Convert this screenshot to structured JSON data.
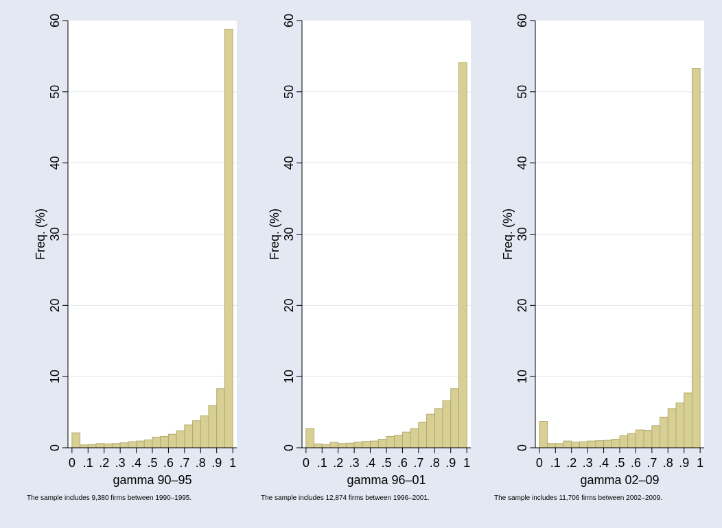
{
  "colors": {
    "background": "#e3e8f2",
    "plot_background": "#ffffff",
    "bar_fill": "#d7cf94",
    "bar_stroke": "#b2aa6c",
    "gridline": "#e1e6ee"
  },
  "chart_data": [
    {
      "type": "bar",
      "xlabel": "gamma 90–95",
      "ylabel": "Freq. (%)",
      "note": "The sample includes 9,380 firms between 1990–1995.",
      "xlim": [
        -0.025,
        1.025
      ],
      "ylim": [
        0,
        60
      ],
      "xticks": [
        "0",
        ".1",
        ".2",
        ".3",
        ".4",
        ".5",
        ".6",
        ".7",
        ".8",
        ".9",
        "1"
      ],
      "yticks": [
        "0",
        "10",
        "20",
        "30",
        "40",
        "50",
        "60"
      ],
      "grid": true,
      "bin_width": 0.05,
      "bin_starts": [
        0,
        0.05,
        0.1,
        0.15,
        0.2,
        0.25,
        0.3,
        0.35,
        0.4,
        0.45,
        0.5,
        0.55,
        0.6,
        0.65,
        0.7,
        0.75,
        0.8,
        0.85,
        0.9,
        0.95
      ],
      "values": [
        2.1,
        0.4,
        0.45,
        0.6,
        0.55,
        0.6,
        0.7,
        0.85,
        0.95,
        1.1,
        1.5,
        1.6,
        1.9,
        2.4,
        3.2,
        3.8,
        4.5,
        5.9,
        8.3,
        58.8
      ]
    },
    {
      "type": "bar",
      "xlabel": "gamma 96–01",
      "ylabel": "Freq. (%)",
      "note": "The sample includes 12,874 firms between 1996–2001.",
      "xlim": [
        -0.025,
        1.025
      ],
      "ylim": [
        0,
        60
      ],
      "xticks": [
        "0",
        ".1",
        ".2",
        ".3",
        ".4",
        ".5",
        ".6",
        ".7",
        ".8",
        ".9",
        "1"
      ],
      "yticks": [
        "0",
        "10",
        "20",
        "30",
        "40",
        "50",
        "60"
      ],
      "grid": true,
      "bin_width": 0.05,
      "bin_starts": [
        0,
        0.05,
        0.1,
        0.15,
        0.2,
        0.25,
        0.3,
        0.35,
        0.4,
        0.45,
        0.5,
        0.55,
        0.6,
        0.65,
        0.7,
        0.75,
        0.8,
        0.85,
        0.9,
        0.95
      ],
      "values": [
        2.7,
        0.55,
        0.45,
        0.75,
        0.6,
        0.65,
        0.8,
        0.9,
        0.95,
        1.2,
        1.6,
        1.75,
        2.2,
        2.7,
        3.6,
        4.7,
        5.5,
        6.6,
        8.3,
        54.1
      ]
    },
    {
      "type": "bar",
      "xlabel": "gamma 02–09",
      "ylabel": "Freq. (%)",
      "note": "The sample includes 11,706 firms between 2002–2009.",
      "xlim": [
        -0.025,
        1.025
      ],
      "ylim": [
        0,
        60
      ],
      "xticks": [
        "0",
        ".1",
        ".2",
        ".3",
        ".4",
        ".5",
        ".6",
        ".7",
        ".8",
        ".9",
        "1"
      ],
      "yticks": [
        "0",
        "10",
        "20",
        "30",
        "40",
        "50",
        "60"
      ],
      "grid": true,
      "bin_width": 0.05,
      "bin_starts": [
        0,
        0.05,
        0.1,
        0.15,
        0.2,
        0.25,
        0.3,
        0.35,
        0.4,
        0.45,
        0.5,
        0.55,
        0.6,
        0.65,
        0.7,
        0.75,
        0.8,
        0.85,
        0.9,
        0.95
      ],
      "values": [
        3.7,
        0.6,
        0.6,
        0.95,
        0.8,
        0.85,
        0.95,
        1.0,
        1.05,
        1.2,
        1.7,
        2.0,
        2.5,
        2.45,
        3.1,
        4.3,
        5.5,
        6.3,
        7.7,
        53.3
      ]
    }
  ]
}
